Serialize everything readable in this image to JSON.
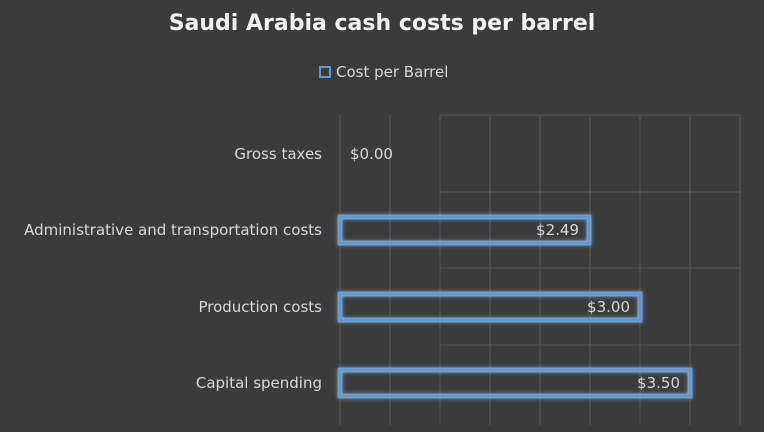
{
  "chart_data": {
    "type": "bar",
    "orientation": "horizontal",
    "title": "Saudi Arabia cash costs per barrel",
    "categories": [
      "Gross taxes",
      "Administrative and transportation costs",
      "Production costs",
      "Capital spending"
    ],
    "series": [
      {
        "name": "Cost per Barrel",
        "values": [
          0.0,
          2.49,
          3.0,
          3.5
        ],
        "labels": [
          "$0.00",
          "$2.49",
          "$3.00",
          "$3.50"
        ]
      }
    ],
    "xlim": [
      0,
      4
    ],
    "grid": true,
    "legend": "top-center",
    "colors": {
      "background": "#3b3b3b",
      "bar_outline": "#5b9bd5",
      "bar_glow": "#8fc4ff",
      "text": "#d9d9d9",
      "title": "#f2f2f2",
      "grid": "#595959"
    }
  }
}
